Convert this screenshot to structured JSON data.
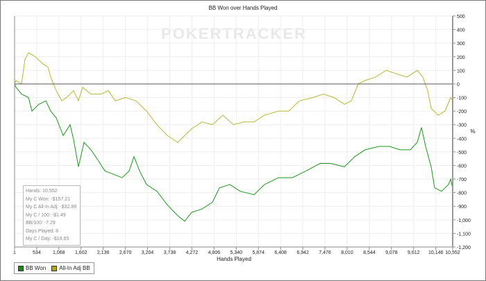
{
  "chart_data": {
    "type": "line",
    "title": "BB Won over Hands Played",
    "xlabel": "Hands Played",
    "ylabel": "%",
    "watermark": "POKERTRACKER",
    "xlim": [
      1,
      10552
    ],
    "ylim": [
      -1200,
      500
    ],
    "grid": true,
    "legend_placement": "bottom-left",
    "x_ticks": [
      "1",
      "534",
      "1,068",
      "1,602",
      "2,136",
      "2,670",
      "3,204",
      "3,738",
      "4,272",
      "4,806",
      "5,340",
      "5,874",
      "6,408",
      "6,942",
      "7,476",
      "8,010",
      "8,544",
      "9,078",
      "9,612",
      "10,146",
      "10,552"
    ],
    "x_tick_values": [
      1,
      534,
      1068,
      1602,
      2136,
      2670,
      3204,
      3738,
      4272,
      4806,
      5340,
      5874,
      6408,
      6942,
      7476,
      8010,
      8544,
      9078,
      9612,
      10146,
      10552
    ],
    "y_ticks": [
      "500",
      "400",
      "300",
      "200",
      "100",
      "0",
      "-100",
      "-200",
      "-300",
      "-400",
      "-500",
      "-600",
      "-700",
      "-800",
      "-900",
      "-1,000",
      "-1,100",
      "-1,200"
    ],
    "y_tick_values": [
      500,
      400,
      300,
      200,
      100,
      0,
      -100,
      -200,
      -300,
      -400,
      -500,
      -600,
      -700,
      -800,
      -900,
      -1000,
      -1100,
      -1200
    ],
    "series": [
      {
        "name": "BB Won",
        "color": "#1a9a1a",
        "legend_color": "#1a8a1a",
        "points": [
          [
            1,
            0
          ],
          [
            34,
            -25
          ],
          [
            168,
            -75
          ],
          [
            335,
            -100
          ],
          [
            419,
            -200
          ],
          [
            586,
            -150
          ],
          [
            753,
            -125
          ],
          [
            870,
            -200
          ],
          [
            1004,
            -250
          ],
          [
            1171,
            -380
          ],
          [
            1339,
            -300
          ],
          [
            1422,
            -410
          ],
          [
            1539,
            -610
          ],
          [
            1673,
            -430
          ],
          [
            1840,
            -485
          ],
          [
            2007,
            -560
          ],
          [
            2175,
            -640
          ],
          [
            2342,
            -660
          ],
          [
            2593,
            -690
          ],
          [
            2760,
            -640
          ],
          [
            2877,
            -535
          ],
          [
            3011,
            -640
          ],
          [
            3178,
            -740
          ],
          [
            3429,
            -790
          ],
          [
            3680,
            -890
          ],
          [
            3930,
            -970
          ],
          [
            4098,
            -1010
          ],
          [
            4265,
            -945
          ],
          [
            4516,
            -920
          ],
          [
            4767,
            -870
          ],
          [
            4934,
            -765
          ],
          [
            5185,
            -740
          ],
          [
            5436,
            -790
          ],
          [
            5770,
            -815
          ],
          [
            6021,
            -740
          ],
          [
            6356,
            -690
          ],
          [
            6690,
            -690
          ],
          [
            7024,
            -640
          ],
          [
            7358,
            -585
          ],
          [
            7609,
            -585
          ],
          [
            7944,
            -610
          ],
          [
            8194,
            -535
          ],
          [
            8445,
            -485
          ],
          [
            8780,
            -460
          ],
          [
            9030,
            -460
          ],
          [
            9281,
            -485
          ],
          [
            9532,
            -485
          ],
          [
            9699,
            -430
          ],
          [
            9799,
            -320
          ],
          [
            9900,
            -460
          ],
          [
            10034,
            -610
          ],
          [
            10117,
            -765
          ],
          [
            10285,
            -790
          ],
          [
            10452,
            -740
          ],
          [
            10502,
            -700
          ],
          [
            10552,
            -770
          ]
        ]
      },
      {
        "name": "All-In Adj BB",
        "color": "#b8b830",
        "legend_color": "#b0a800",
        "points": [
          [
            1,
            0
          ],
          [
            34,
            25
          ],
          [
            168,
            0
          ],
          [
            252,
            180
          ],
          [
            335,
            230
          ],
          [
            503,
            200
          ],
          [
            670,
            150
          ],
          [
            804,
            125
          ],
          [
            870,
            50
          ],
          [
            1004,
            -50
          ],
          [
            1138,
            -125
          ],
          [
            1255,
            -100
          ],
          [
            1422,
            -50
          ],
          [
            1539,
            -125
          ],
          [
            1640,
            -25
          ],
          [
            1840,
            -75
          ],
          [
            2091,
            -75
          ],
          [
            2258,
            -50
          ],
          [
            2426,
            -125
          ],
          [
            2676,
            -100
          ],
          [
            2927,
            -125
          ],
          [
            3178,
            -200
          ],
          [
            3429,
            -300
          ],
          [
            3680,
            -380
          ],
          [
            3930,
            -430
          ],
          [
            4098,
            -380
          ],
          [
            4265,
            -330
          ],
          [
            4516,
            -280
          ],
          [
            4767,
            -300
          ],
          [
            5018,
            -230
          ],
          [
            5269,
            -300
          ],
          [
            5519,
            -280
          ],
          [
            5770,
            -280
          ],
          [
            6021,
            -230
          ],
          [
            6356,
            -200
          ],
          [
            6606,
            -200
          ],
          [
            6857,
            -125
          ],
          [
            7191,
            -100
          ],
          [
            7442,
            -75
          ],
          [
            7693,
            -100
          ],
          [
            7944,
            -150
          ],
          [
            8111,
            -125
          ],
          [
            8278,
            0
          ],
          [
            8445,
            25
          ],
          [
            8696,
            50
          ],
          [
            8947,
            100
          ],
          [
            9198,
            75
          ],
          [
            9449,
            50
          ],
          [
            9699,
            100
          ],
          [
            9833,
            50
          ],
          [
            9950,
            -50
          ],
          [
            10034,
            -180
          ],
          [
            10201,
            -230
          ],
          [
            10368,
            -200
          ],
          [
            10502,
            -100
          ],
          [
            10552,
            -125
          ]
        ]
      }
    ]
  },
  "stats": [
    "Hands: 10,552",
    "My C Won: -$157.21",
    "My C All-In Adj: -$32.89",
    "My C / 100: -$1.49",
    "BB/100: -7.29",
    "Days Played: 8",
    "My C / Day: -$19.65"
  ]
}
